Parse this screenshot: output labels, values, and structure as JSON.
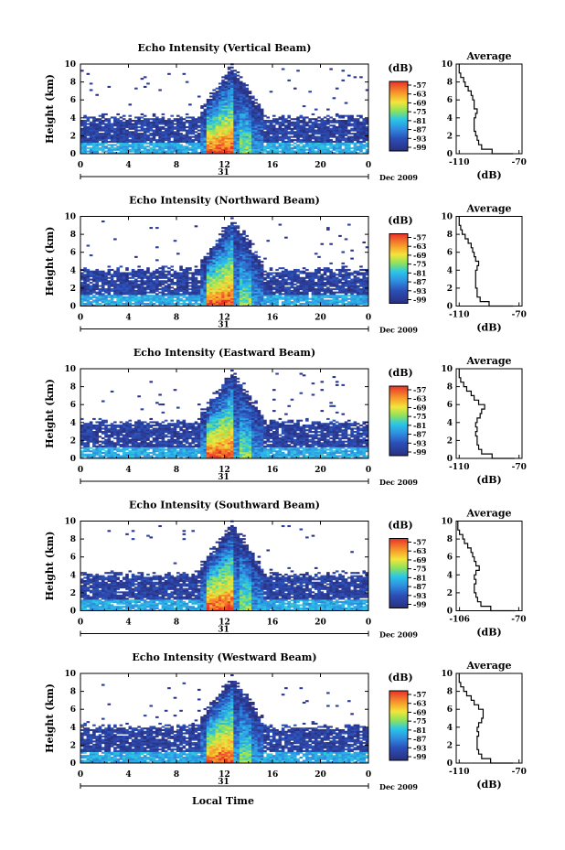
{
  "figure": {
    "x_axis_title": "Local Time",
    "date_label": "Dec 2009",
    "day_label": "31",
    "units_label": "(dB)",
    "y_axis_title": "Height (km)",
    "avg_title": "Average",
    "avg_xlabel": "(dB)"
  },
  "chart_data": [
    {
      "type": "heatmap",
      "title": "Echo Intensity (Vertical Beam)",
      "xlabel": "Local Time",
      "ylabel": "Height (km)",
      "xlim": [
        0,
        24
      ],
      "ylim": [
        0,
        10
      ],
      "xticks": [
        "0",
        "4",
        "8",
        "12",
        "16",
        "20",
        "0"
      ],
      "yticks": [
        "0",
        "2",
        "4",
        "6",
        "8",
        "10"
      ],
      "colorbar": {
        "label": "(dB)",
        "ticks": [
          "-57",
          "-63",
          "-69",
          "-75",
          "-81",
          "-87",
          "-93",
          "-99"
        ],
        "range": [
          -99,
          -57
        ]
      },
      "storm": {
        "start": 10,
        "end": 15,
        "top_km": 9.5
      },
      "background_layer_top_km": 4,
      "average_profile": {
        "title": "Average",
        "xlabel": "(dB)",
        "xticks": [
          "-110",
          "-70"
        ],
        "xlim": [
          -112,
          -68
        ],
        "height_km": [
          0,
          0.5,
          1,
          1.5,
          2,
          2.5,
          3,
          3.5,
          4,
          4.5,
          5,
          5.5,
          6,
          6.5,
          7,
          7.5,
          8,
          8.5,
          9,
          9.5,
          10
        ],
        "db": [
          -74,
          -88,
          -95,
          -97,
          -98,
          -99,
          -100,
          -100,
          -100,
          -99,
          -98,
          -100,
          -100,
          -101,
          -102,
          -104,
          -106,
          -107,
          -109,
          -110,
          -110
        ]
      }
    },
    {
      "type": "heatmap",
      "title": "Echo Intensity (Northward Beam)",
      "xlabel": "Local Time",
      "ylabel": "Height (km)",
      "xlim": [
        0,
        24
      ],
      "ylim": [
        0,
        10
      ],
      "xticks": [
        "0",
        "4",
        "8",
        "12",
        "16",
        "20",
        "0"
      ],
      "yticks": [
        "0",
        "2",
        "4",
        "6",
        "8",
        "10"
      ],
      "colorbar": {
        "label": "(dB)",
        "ticks": [
          "-57",
          "-63",
          "-69",
          "-75",
          "-81",
          "-87",
          "-93",
          "-99"
        ],
        "range": [
          -99,
          -57
        ]
      },
      "storm": {
        "start": 10,
        "end": 15,
        "top_km": 9.5
      },
      "background_layer_top_km": 4,
      "average_profile": {
        "title": "Average",
        "xlabel": "(dB)",
        "xticks": [
          "-110",
          "-70"
        ],
        "xlim": [
          -112,
          -68
        ],
        "height_km": [
          0,
          0.5,
          1,
          1.5,
          2,
          2.5,
          3,
          3.5,
          4,
          4.5,
          5,
          5.5,
          6,
          6.5,
          7,
          7.5,
          8,
          8.5,
          9,
          9.5,
          10
        ],
        "db": [
          -74,
          -90,
          -96,
          -98,
          -98,
          -99,
          -99,
          -99,
          -99,
          -98,
          -97,
          -99,
          -100,
          -101,
          -102,
          -104,
          -106,
          -108,
          -109,
          -110,
          -110
        ]
      }
    },
    {
      "type": "heatmap",
      "title": "Echo Intensity (Eastward Beam)",
      "xlabel": "Local Time",
      "ylabel": "Height (km)",
      "xlim": [
        0,
        24
      ],
      "ylim": [
        0,
        10
      ],
      "xticks": [
        "0",
        "4",
        "8",
        "12",
        "16",
        "20",
        "0"
      ],
      "yticks": [
        "0",
        "2",
        "4",
        "6",
        "8",
        "10"
      ],
      "colorbar": {
        "label": "(dB)",
        "ticks": [
          "-57",
          "-63",
          "-69",
          "-75",
          "-81",
          "-87",
          "-93",
          "-99"
        ],
        "range": [
          -99,
          -57
        ]
      },
      "storm": {
        "start": 10,
        "end": 15,
        "top_km": 9.5
      },
      "background_layer_top_km": 4,
      "average_profile": {
        "title": "Average",
        "xlabel": "(dB)",
        "xticks": [
          "-110",
          "-70"
        ],
        "xlim": [
          -112,
          -68
        ],
        "height_km": [
          0,
          0.5,
          1,
          1.5,
          2,
          2.5,
          3,
          3.5,
          4,
          4.5,
          5,
          5.5,
          6,
          6.5,
          7,
          7.5,
          8,
          8.5,
          9,
          9.5,
          10
        ],
        "db": [
          -73,
          -88,
          -95,
          -97,
          -98,
          -98,
          -99,
          -98,
          -99,
          -98,
          -96,
          -95,
          -93,
          -97,
          -100,
          -102,
          -105,
          -107,
          -109,
          -110,
          -110
        ]
      }
    },
    {
      "type": "heatmap",
      "title": "Echo Intensity (Southward Beam)",
      "xlabel": "Local Time",
      "ylabel": "Height (km)",
      "xlim": [
        0,
        24
      ],
      "ylim": [
        0,
        10
      ],
      "xticks": [
        "0",
        "4",
        "8",
        "12",
        "16",
        "20",
        "0"
      ],
      "yticks": [
        "0",
        "2",
        "4",
        "6",
        "8",
        "10"
      ],
      "colorbar": {
        "label": "(dB)",
        "ticks": [
          "-57",
          "-63",
          "-69",
          "-75",
          "-81",
          "-87",
          "-93",
          "-99"
        ],
        "range": [
          -99,
          -57
        ]
      },
      "storm": {
        "start": 10,
        "end": 15,
        "top_km": 9.5
      },
      "background_layer_top_km": 4,
      "average_profile": {
        "title": "Average",
        "xlabel": "(dB)",
        "xticks": [
          "-106",
          "-70"
        ],
        "xlim": [
          -108,
          -68
        ],
        "height_km": [
          0,
          0.5,
          1,
          1.5,
          2,
          2.5,
          3,
          3.5,
          4,
          4.5,
          5,
          5.5,
          6,
          6.5,
          7,
          7.5,
          8,
          8.5,
          9,
          9.5,
          10
        ],
        "db": [
          -72,
          -87,
          -93,
          -95,
          -96,
          -97,
          -97,
          -96,
          -97,
          -96,
          -94,
          -96,
          -97,
          -98,
          -99,
          -101,
          -103,
          -104,
          -106,
          -107,
          -107
        ]
      }
    },
    {
      "type": "heatmap",
      "title": "Echo Intensity (Westward Beam)",
      "xlabel": "Local Time",
      "ylabel": "Height (km)",
      "xlim": [
        0,
        24
      ],
      "ylim": [
        0,
        10
      ],
      "xticks": [
        "0",
        "4",
        "8",
        "12",
        "16",
        "20",
        "0"
      ],
      "yticks": [
        "0",
        "2",
        "4",
        "6",
        "8",
        "10"
      ],
      "colorbar": {
        "label": "(dB)",
        "ticks": [
          "-57",
          "-63",
          "-69",
          "-75",
          "-81",
          "-87",
          "-93",
          "-99"
        ],
        "range": [
          -99,
          -57
        ]
      },
      "storm": {
        "start": 10,
        "end": 15,
        "top_km": 9.5
      },
      "background_layer_top_km": 4,
      "average_profile": {
        "title": "Average",
        "xlabel": "(dB)",
        "xticks": [
          "-110",
          "-70"
        ],
        "xlim": [
          -112,
          -68
        ],
        "height_km": [
          0,
          0.5,
          1,
          1.5,
          2,
          2.5,
          3,
          3.5,
          4,
          4.5,
          5,
          5.5,
          6,
          6.5,
          7,
          7.5,
          8,
          8.5,
          9,
          9.5,
          10
        ],
        "db": [
          -74,
          -89,
          -95,
          -97,
          -98,
          -98,
          -98,
          -97,
          -98,
          -97,
          -95,
          -94,
          -94,
          -97,
          -100,
          -102,
          -105,
          -107,
          -109,
          -110,
          -110
        ]
      }
    }
  ]
}
